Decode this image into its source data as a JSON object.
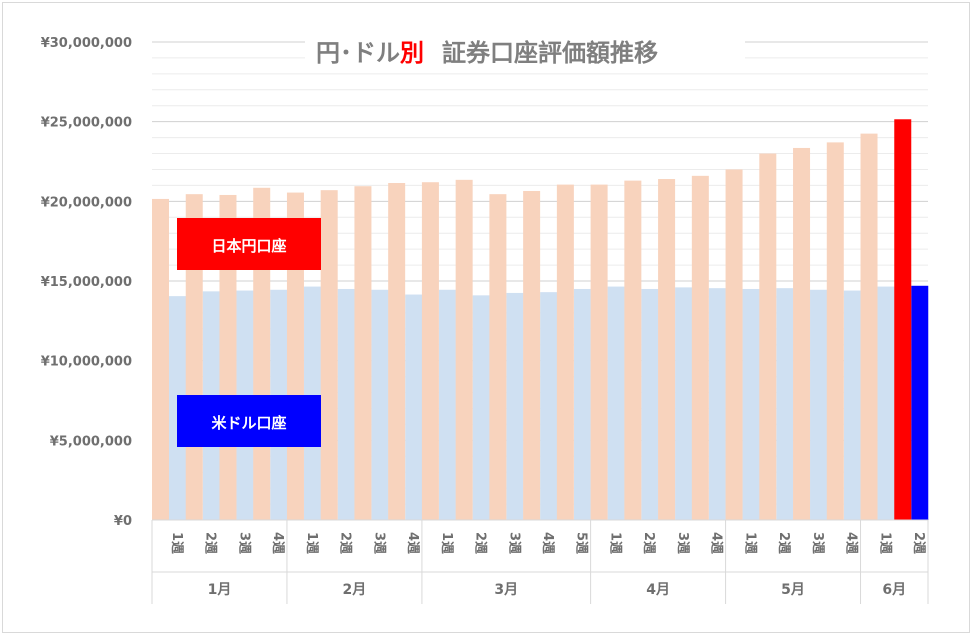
{
  "chart_data": {
    "type": "bar",
    "title": {
      "part1": "円･ドル",
      "part2": "別",
      "part3": "証券口座評価額推移"
    },
    "ylim": [
      0,
      30000000
    ],
    "yticks": [
      "¥0",
      "¥5,000,000",
      "¥10,000,000",
      "¥15,000,000",
      "¥20,000,000",
      "¥25,000,000",
      "¥30,000,000"
    ],
    "grid": true,
    "months": [
      {
        "label": "1月",
        "weeks": [
          "1週",
          "2週",
          "3週",
          "4週"
        ]
      },
      {
        "label": "2月",
        "weeks": [
          "1週",
          "2週",
          "3週",
          "4週"
        ]
      },
      {
        "label": "3月",
        "weeks": [
          "1週",
          "2週",
          "3週",
          "4週",
          "5週"
        ]
      },
      {
        "label": "4月",
        "weeks": [
          "1週",
          "2週",
          "3週",
          "4週"
        ]
      },
      {
        "label": "5月",
        "weeks": [
          "1週",
          "2週",
          "3週",
          "4週"
        ]
      },
      {
        "label": "6月",
        "weeks": [
          "1週",
          "2週"
        ]
      }
    ],
    "series": [
      {
        "name": "日本円口座",
        "color": "#f8d3bd",
        "highlight_color": "#ff0000",
        "values": [
          20150000,
          20450000,
          20400000,
          20850000,
          20550000,
          20700000,
          20950000,
          21150000,
          21200000,
          21350000,
          20450000,
          20650000,
          21050000,
          21050000,
          21300000,
          21400000,
          21600000,
          22000000,
          23000000,
          23350000,
          23700000,
          24250000,
          25150000
        ]
      },
      {
        "name": "米ドル口座",
        "color": "#cfe0f2",
        "highlight_color": "#0000ff",
        "values": [
          14050000,
          14350000,
          14400000,
          14450000,
          14650000,
          14500000,
          14450000,
          14150000,
          14450000,
          14100000,
          14250000,
          14300000,
          14500000,
          14650000,
          14500000,
          14600000,
          14550000,
          14500000,
          14550000,
          14450000,
          14400000,
          14650000,
          14700000
        ]
      }
    ],
    "highlight_index": 22,
    "legend": {
      "yen_label": "日本円口座",
      "yen_color": "#ff0000",
      "usd_label": "米ドル口座",
      "usd_color": "#0000ff"
    }
  }
}
